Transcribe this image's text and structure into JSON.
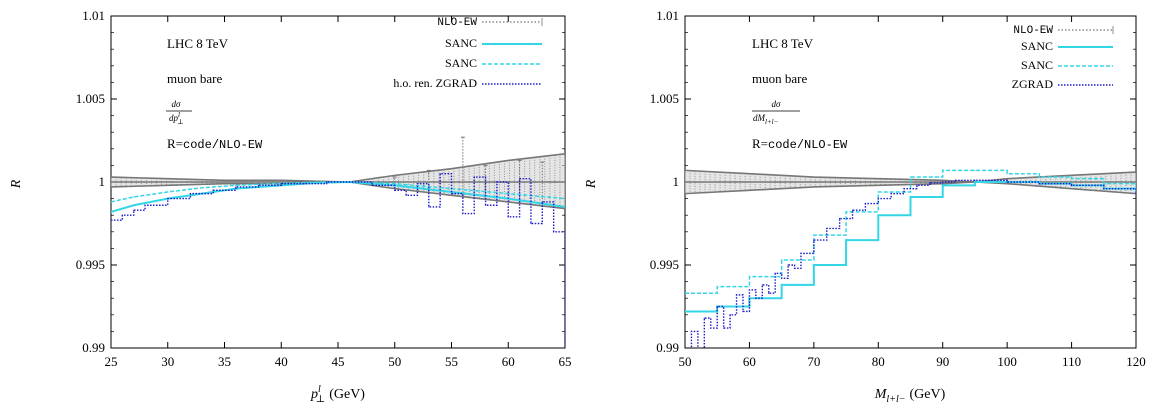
{
  "chart_data": [
    {
      "type": "line",
      "ylabel": "R",
      "xlabel_main": "p",
      "xlabel_sup": "l",
      "xlabel_sub": "⊥",
      "xlabel_unit": "(GeV)",
      "xlim": [
        25,
        65
      ],
      "ylim": [
        0.99,
        1.01
      ],
      "xticks": [
        "25",
        "30",
        "35",
        "40",
        "45",
        "50",
        "55",
        "60",
        "65"
      ],
      "yticks": [
        "0.99",
        "0.995",
        "1",
        "1.005",
        "1.01"
      ],
      "ytick_values": [
        0.99,
        0.995,
        1.0,
        1.005,
        1.01
      ],
      "xtick_values": [
        25,
        30,
        35,
        40,
        45,
        50,
        55,
        60,
        65
      ],
      "annotations": {
        "line1": "LHC 8 TeV",
        "line2": "muon bare",
        "frac_num": "dσ",
        "frac_den": "dp",
        "frac_den_sup": "l",
        "frac_den_sub": "⊥",
        "ratio_prefix": "R=",
        "ratio_code": "code/NLO-EW"
      },
      "legend": [
        "NLO-EW",
        "SANC",
        "SANC",
        "h.o. ren. ZGRAD"
      ],
      "series": [
        {
          "name": "NLO-EW",
          "style": "gray-band",
          "color": "#8c8c8c",
          "x": [
            25,
            30,
            35,
            40,
            46,
            50,
            55,
            60,
            65
          ],
          "upper": [
            1.0003,
            1.0002,
            1.0001,
            1.0001,
            1.0,
            1.0004,
            1.0008,
            1.0013,
            1.0017
          ],
          "lower": [
            0.9997,
            0.9998,
            0.9999,
            0.9999,
            1.0,
            0.9996,
            0.9992,
            0.9988,
            0.9984
          ],
          "spikes": [
            [
              50,
              0.9996,
              1.0003
            ],
            [
              53,
              0.9994,
              1.0007
            ],
            [
              56,
              0.999,
              1.0027
            ],
            [
              58,
              0.9991,
              1.001
            ],
            [
              61,
              0.999,
              1.0013
            ],
            [
              63,
              0.9986,
              1.0012
            ]
          ]
        },
        {
          "name": "SANC",
          "style": "solid",
          "color": "#33d6e6",
          "x": [
            25,
            27,
            30,
            33,
            36,
            40,
            43,
            46,
            50,
            55,
            60,
            65
          ],
          "y": [
            0.9982,
            0.9986,
            0.999,
            0.9993,
            0.9996,
            0.9998,
            0.99995,
            1.0,
            0.9998,
            0.9994,
            0.999,
            0.9985
          ]
        },
        {
          "name": "SANC",
          "style": "dashed",
          "color": "#33d6e6",
          "x": [
            25,
            27,
            30,
            33,
            36,
            40,
            43,
            46,
            50,
            55,
            60,
            65
          ],
          "y": [
            0.9988,
            0.9991,
            0.9994,
            0.99965,
            0.9998,
            0.99992,
            0.99998,
            1.0,
            0.9999,
            0.9996,
            0.9993,
            0.999
          ]
        },
        {
          "name": "h.o. ren. ZGRAD",
          "style": "dotted-step",
          "color": "#1a1acc",
          "x": [
            25,
            26,
            27,
            28,
            30,
            32,
            34,
            36,
            38,
            40,
            42,
            44,
            46,
            48,
            50,
            51,
            52,
            53,
            54,
            55,
            56,
            57,
            58,
            59,
            60,
            61,
            62,
            63,
            64,
            65
          ],
          "y": [
            0.9977,
            0.998,
            0.9983,
            0.9986,
            0.999,
            0.9993,
            0.9995,
            0.9997,
            0.9998,
            0.9999,
            0.9999,
            1.0,
            1.0,
            0.9998,
            0.9995,
            0.9992,
            0.9999,
            0.9985,
            1.0005,
            0.9993,
            0.9981,
            1.0003,
            0.9986,
            1.0,
            0.9979,
            1.0002,
            0.9975,
            0.9988,
            0.997,
            0.9898
          ]
        }
      ]
    },
    {
      "type": "line",
      "ylabel": "R",
      "xlabel_main": "M",
      "xlabel_sub": "l+l−",
      "xlabel_unit": "(GeV)",
      "xlim": [
        50,
        120
      ],
      "ylim": [
        0.99,
        1.01
      ],
      "xticks": [
        "50",
        "60",
        "70",
        "80",
        "90",
        "100",
        "110",
        "120"
      ],
      "yticks": [
        "0.99",
        "0.995",
        "1",
        "1.005",
        "1.01"
      ],
      "ytick_values": [
        0.99,
        0.995,
        1.0,
        1.005,
        1.01
      ],
      "xtick_values": [
        50,
        60,
        70,
        80,
        90,
        100,
        110,
        120
      ],
      "annotations": {
        "line1": "LHC 8 TeV",
        "line2": "muon bare",
        "frac_num": "dσ",
        "frac_den": "dM",
        "frac_den_sub": "l+l−",
        "ratio_prefix": "R=",
        "ratio_code": "code/NLO-EW"
      },
      "legend": [
        "NLO-EW",
        "SANC",
        "SANC",
        "ZGRAD"
      ],
      "series": [
        {
          "name": "NLO-EW",
          "style": "gray-band",
          "color": "#8c8c8c",
          "x": [
            50,
            60,
            70,
            80,
            90,
            95,
            100,
            110,
            120
          ],
          "upper": [
            1.0007,
            1.0005,
            1.0003,
            1.0002,
            1.0001,
            1.0,
            1.0002,
            1.0004,
            1.0006
          ],
          "lower": [
            0.9993,
            0.9995,
            0.9997,
            0.9998,
            0.9999,
            1.0,
            0.9999,
            0.9996,
            0.9993
          ],
          "spikes": []
        },
        {
          "name": "SANC",
          "style": "solid-step",
          "color": "#33d6e6",
          "x": [
            50,
            55,
            60,
            65,
            70,
            75,
            80,
            85,
            90,
            95,
            100,
            105,
            110,
            115,
            120
          ],
          "y": [
            0.9922,
            0.9925,
            0.993,
            0.9938,
            0.995,
            0.9965,
            0.998,
            0.9991,
            0.9998,
            1.0,
            1.0,
            0.9999,
            0.9998,
            0.9996,
            0.9994
          ]
        },
        {
          "name": "SANC",
          "style": "dashed-step",
          "color": "#33d6e6",
          "x": [
            50,
            55,
            60,
            65,
            70,
            75,
            80,
            85,
            90,
            95,
            100,
            105,
            110,
            115,
            120
          ],
          "y": [
            0.9933,
            0.9937,
            0.9943,
            0.9953,
            0.9968,
            0.9982,
            0.9994,
            1.0003,
            1.0007,
            1.0007,
            1.0005,
            1.0003,
            1.0002,
            0.9999,
            0.9996
          ]
        },
        {
          "name": "ZGRAD",
          "style": "dotted-step",
          "color": "#1a1acc",
          "x": [
            50,
            51,
            52,
            53,
            54,
            55,
            56,
            57,
            58,
            59,
            60,
            61,
            62,
            63,
            64,
            65,
            66,
            67,
            68,
            70,
            72,
            74,
            76,
            78,
            80,
            82,
            84,
            86,
            88,
            90,
            92,
            95,
            100,
            105,
            110,
            115,
            120
          ],
          "y": [
            0.9899,
            0.991,
            0.9893,
            0.9918,
            0.9912,
            0.9925,
            0.9912,
            0.992,
            0.9932,
            0.9922,
            0.9935,
            0.993,
            0.9938,
            0.9933,
            0.9945,
            0.9942,
            0.995,
            0.9948,
            0.9957,
            0.9965,
            0.9972,
            0.9978,
            0.9983,
            0.9987,
            0.999,
            0.9993,
            0.9996,
            0.9998,
            0.99995,
            1.0,
            1.0001,
            1.0001,
            1.0,
            0.9999,
            0.9998,
            0.9996,
            0.9993
          ]
        }
      ]
    }
  ]
}
